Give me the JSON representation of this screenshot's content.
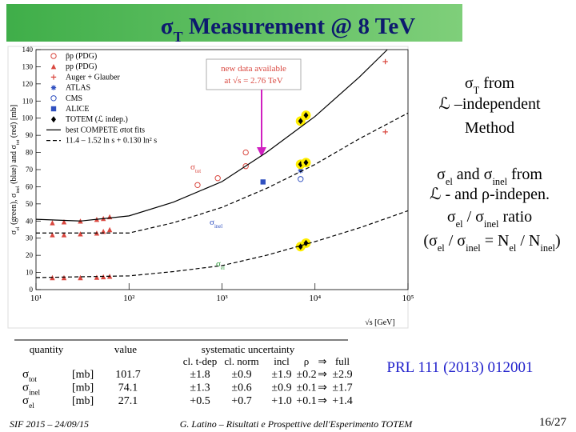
{
  "title": [
    "σ",
    "T",
    " Measurement @ 8 TeV"
  ],
  "right_text": [
    [
      "σ",
      "T",
      " from"
    ],
    [
      "ℒ –independent"
    ],
    [
      "Method"
    ],
    [
      "σ",
      "el",
      " and σ",
      "inel",
      " from"
    ],
    [
      "ℒ - and ρ-indepen."
    ],
    [
      "σ",
      "el",
      " / σ",
      "inel",
      " ratio"
    ],
    [
      "(σ",
      "el",
      " / σ",
      "inel",
      " = N",
      "el",
      " / N",
      "inel",
      ")"
    ]
  ],
  "reference": "PRL 111 (2013) 012001",
  "footer": {
    "left": "SIF 2015 – 24/09/15",
    "center": "G. Latino – Risultati e Prospettive dell'Esperimento TOTEM",
    "page": "16/27"
  },
  "chart_data": {
    "type": "scatter",
    "xlabel": "√s  [GeV]",
    "ylabel": [
      "σ",
      "el",
      " (green), σ",
      "inel",
      " (blue) and σ",
      "tot",
      " (red)  [mb]"
    ],
    "log_x": true,
    "xlim": [
      10,
      100000
    ],
    "xticks": [
      {
        "value": 10,
        "label": "10¹"
      },
      {
        "value": 100,
        "label": "10²"
      },
      {
        "value": 1000,
        "label": "10³"
      },
      {
        "value": 10000,
        "label": "10⁴"
      },
      {
        "value": 100000,
        "label": "10⁵"
      }
    ],
    "ylim": [
      0,
      140
    ],
    "yticks": [
      0,
      10,
      20,
      30,
      40,
      50,
      60,
      70,
      80,
      90,
      100,
      110,
      120,
      130,
      140
    ],
    "series": [
      {
        "name": "p̄p (PDG)",
        "color": "#d9473f",
        "marker": "circle-open",
        "x": [
          546,
          900,
          1800,
          1800
        ],
        "values": [
          61,
          65,
          72,
          80
        ]
      },
      {
        "name": "pp (PDG)",
        "color": "#d9473f",
        "marker": "triangle",
        "x": [
          15,
          20,
          30,
          45,
          53,
          62,
          15,
          20,
          30,
          45,
          53,
          62,
          15,
          20,
          30,
          45,
          53,
          62
        ],
        "values": [
          39,
          39.5,
          40,
          41,
          41.5,
          42.5,
          32,
          32,
          32.5,
          33,
          34,
          35,
          7,
          7,
          7,
          7.2,
          7.5,
          7.8
        ]
      },
      {
        "name": "Auger + Glauber",
        "color": "#d9473f",
        "marker": "cross",
        "x": [
          57000,
          57000
        ],
        "values": [
          133,
          92
        ]
      },
      {
        "name": "ATLAS",
        "color": "#3050c0",
        "marker": "star",
        "x": [
          7000
        ],
        "values": [
          69.4
        ]
      },
      {
        "name": "CMS",
        "color": "#3050c0",
        "marker": "circle-open",
        "x": [
          7000
        ],
        "values": [
          64.5
        ]
      },
      {
        "name": "ALICE",
        "color": "#3050c0",
        "marker": "square",
        "x": [
          2760,
          7000
        ],
        "values": [
          62.8,
          73.2
        ]
      },
      {
        "name": "TOTEM (ℒ indep.)",
        "color": "#000000",
        "marker": "diamond",
        "highlight": "#ffee00",
        "x": [
          7000,
          8000,
          7000,
          8000,
          7000,
          8000
        ],
        "values": [
          98.3,
          101.7,
          73.1,
          74.1,
          25.1,
          27.1
        ]
      },
      {
        "name": "best COMPETE σtot fits",
        "color": "#000000",
        "kind": "line",
        "dash": false,
        "x": [
          10,
          30,
          100,
          300,
          1000,
          3000,
          10000,
          30000,
          60000
        ],
        "values": [
          41,
          40,
          43,
          51,
          63,
          80,
          101,
          124,
          140
        ]
      },
      {
        "color": "#000000",
        "kind": "line",
        "dash": true,
        "x": [
          10,
          100,
          300,
          1000,
          3000,
          10000,
          30000,
          100000
        ],
        "values": [
          33,
          33,
          39,
          48,
          59,
          73,
          88,
          103
        ]
      },
      {
        "name": "11.4 – 1.52 ln s + 0.130 ln² s",
        "color": "#000000",
        "kind": "line",
        "dash": true,
        "x": [
          10,
          100,
          300,
          1000,
          3000,
          10000,
          30000,
          100000
        ],
        "values": [
          7,
          8,
          10.5,
          14,
          20,
          28,
          36,
          46
        ]
      }
    ],
    "annotations": {
      "note": [
        "new data available",
        "at √s = 2.76 TeV"
      ],
      "curves": [
        {
          "text": [
            "σ",
            "tot"
          ],
          "color": "#d9473f"
        },
        {
          "text": [
            "σ",
            "inel"
          ],
          "color": "#3050c0"
        },
        {
          "text": [
            "σ",
            "el"
          ],
          "color": "#2e9a3a"
        }
      ]
    }
  },
  "table": {
    "headers": [
      "quantity",
      "value",
      "systematic uncertainty"
    ],
    "subheaders": [
      "cl. t-dep",
      "cl. norm",
      "incl",
      "ρ",
      "⇒",
      "full"
    ],
    "rows": [
      [
        [
          "σ",
          "tot"
        ],
        "[mb]",
        "101.7",
        "±1.8",
        "±0.9",
        "±1.9",
        "±0.2",
        "⇒",
        "±2.9"
      ],
      [
        [
          "σ",
          "inel"
        ],
        "[mb]",
        "74.1",
        "±1.3",
        "±0.6",
        "±0.9",
        "±0.1",
        "⇒",
        "±1.7"
      ],
      [
        [
          "σ",
          "el"
        ],
        "[mb]",
        "27.1",
        "+0.5",
        "+0.7",
        "+1.0",
        "+0.1",
        "⇒",
        "+1.4"
      ]
    ]
  }
}
